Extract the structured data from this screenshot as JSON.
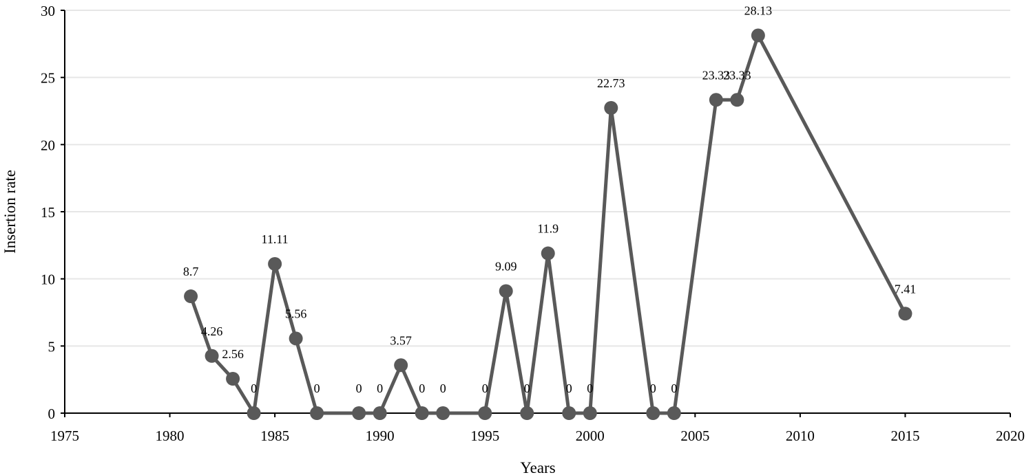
{
  "chart_data": {
    "type": "line",
    "title": "",
    "xlabel": "Years",
    "ylabel": "Insertion rate",
    "xlim": [
      1975,
      2020
    ],
    "ylim": [
      0,
      30
    ],
    "xticks": [
      1975,
      1980,
      1985,
      1990,
      1995,
      2000,
      2005,
      2010,
      2015,
      2020
    ],
    "yticks": [
      0,
      5,
      10,
      15,
      20,
      25,
      30
    ],
    "grid": "horizontal",
    "legend": "none",
    "series_color": "#595959",
    "series": [
      {
        "name": "Insertion rate",
        "x": [
          1981,
          1982,
          1983,
          1984,
          1985,
          1986,
          1987,
          1989,
          1990,
          1991,
          1992,
          1993,
          1995,
          1996,
          1997,
          1998,
          1999,
          2000,
          2001,
          2003,
          2004,
          2006,
          2007,
          2008,
          2015
        ],
        "y": [
          8.7,
          4.26,
          2.56,
          0,
          11.11,
          5.56,
          0,
          0,
          0,
          3.57,
          0,
          0,
          0,
          9.09,
          0,
          11.9,
          0,
          0,
          22.73,
          0,
          0,
          23.33,
          23.33,
          28.13,
          7.41
        ],
        "labels": [
          "8.7",
          "4.26",
          "2.56",
          "0",
          "11.11",
          "5.56",
          "0",
          "0",
          "0",
          "3.57",
          "0",
          "0",
          "0",
          "9.09",
          "0",
          "11.9",
          "0",
          "0",
          "22.73",
          "0",
          "0",
          "23.33",
          "23.33",
          "28.13",
          "7.41"
        ]
      }
    ]
  }
}
